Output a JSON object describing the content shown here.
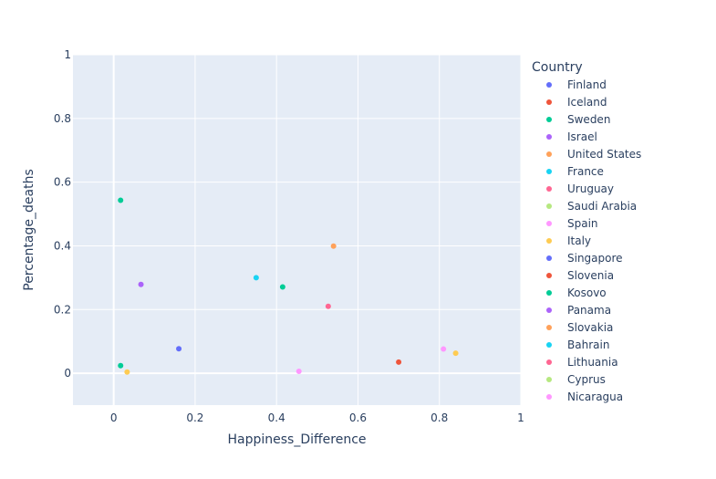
{
  "chart_data": {
    "type": "scatter",
    "xlabel": "Happiness_Difference",
    "ylabel": "Percentage_deaths",
    "xlim": [
      -0.1,
      1.0
    ],
    "ylim": [
      -0.1,
      1.0
    ],
    "xticks": [
      {
        "value": 0,
        "label": "0"
      },
      {
        "value": 0.2,
        "label": "0.2"
      },
      {
        "value": 0.4,
        "label": "0.4"
      },
      {
        "value": 0.6,
        "label": "0.6"
      },
      {
        "value": 0.8,
        "label": "0.8"
      },
      {
        "value": 1.0,
        "label": "1"
      }
    ],
    "yticks": [
      {
        "value": 0,
        "label": "0"
      },
      {
        "value": 0.2,
        "label": "0.2"
      },
      {
        "value": 0.4,
        "label": "0.4"
      },
      {
        "value": 0.6,
        "label": "0.6"
      },
      {
        "value": 0.8,
        "label": "0.8"
      },
      {
        "value": 1.0,
        "label": "1"
      }
    ],
    "grid": true,
    "plot_background": "#e5ecf6",
    "legend": {
      "title": "Country",
      "placement": "right"
    },
    "series": [
      {
        "name": "Finland",
        "color": "#636efa",
        "points": [
          {
            "x": 0.16,
            "y": 0.077
          }
        ]
      },
      {
        "name": "Iceland",
        "color": "#EF553B",
        "points": [
          {
            "x": 0.7,
            "y": 0.035
          }
        ]
      },
      {
        "name": "Sweden",
        "color": "#00cc96",
        "points": [
          {
            "x": 0.017,
            "y": 0.543
          }
        ]
      },
      {
        "name": "Israel",
        "color": "#ab63fa",
        "points": [
          {
            "x": 0.067,
            "y": 0.279
          }
        ]
      },
      {
        "name": "United States",
        "color": "#FFA15A",
        "points": [
          {
            "x": 0.54,
            "y": 0.399
          }
        ]
      },
      {
        "name": "France",
        "color": "#19d3f3",
        "points": [
          {
            "x": 0.35,
            "y": 0.3
          }
        ]
      },
      {
        "name": "Uruguay",
        "color": "#FF6692",
        "points": [
          {
            "x": 0.527,
            "y": 0.21
          }
        ]
      },
      {
        "name": "Saudi Arabia",
        "color": "#B6E880",
        "points": []
      },
      {
        "name": "Spain",
        "color": "#FF97FF",
        "points": [
          {
            "x": 0.455,
            "y": 0.006
          }
        ]
      },
      {
        "name": "Italy",
        "color": "#FECB52",
        "points": [
          {
            "x": 0.033,
            "y": 0.004
          },
          {
            "x": 0.84,
            "y": 0.063
          }
        ]
      },
      {
        "name": "Singapore",
        "color": "#636efa",
        "points": []
      },
      {
        "name": "Slovenia",
        "color": "#EF553B",
        "points": []
      },
      {
        "name": "Kosovo",
        "color": "#00cc96",
        "points": [
          {
            "x": 0.017,
            "y": 0.024
          },
          {
            "x": 0.415,
            "y": 0.271
          }
        ]
      },
      {
        "name": "Panama",
        "color": "#ab63fa",
        "points": []
      },
      {
        "name": "Slovakia",
        "color": "#FFA15A",
        "points": []
      },
      {
        "name": "Bahrain",
        "color": "#19d3f3",
        "points": []
      },
      {
        "name": "Lithuania",
        "color": "#FF6692",
        "points": []
      },
      {
        "name": "Cyprus",
        "color": "#B6E880",
        "points": []
      },
      {
        "name": "Nicaragua",
        "color": "#FF97FF",
        "points": [
          {
            "x": 0.81,
            "y": 0.076
          }
        ]
      }
    ]
  }
}
